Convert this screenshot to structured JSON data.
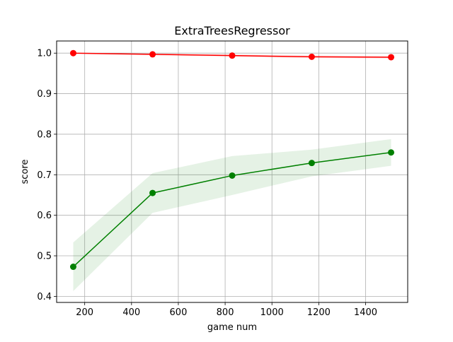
{
  "chart_data": {
    "type": "line",
    "title": "ExtraTreesRegressor",
    "xlabel": "game num",
    "ylabel": "score",
    "xlim": [
      80,
      1580
    ],
    "ylim": [
      0.385,
      1.03
    ],
    "xticks": [
      200,
      400,
      600,
      800,
      1000,
      1200,
      1400
    ],
    "xtick_labels": [
      "200",
      "400",
      "600",
      "800",
      "1000",
      "1200",
      "1400"
    ],
    "yticks": [
      0.4,
      0.5,
      0.6,
      0.7,
      0.8,
      0.9,
      1.0
    ],
    "ytick_labels": [
      "0.4",
      "0.5",
      "0.6",
      "0.7",
      "0.8",
      "0.9",
      "1.0"
    ],
    "grid": true,
    "x": [
      151,
      490,
      830,
      1170,
      1509
    ],
    "series": [
      {
        "values": [
          1.0,
          0.997,
          0.994,
          0.991,
          0.99
        ],
        "lower": [
          0.999,
          0.995,
          0.991,
          0.988,
          0.987
        ],
        "upper": [
          1.001,
          0.999,
          0.997,
          0.994,
          0.993
        ],
        "color": "#ff0000",
        "band_color": "#ff0000"
      },
      {
        "values": [
          0.473,
          0.655,
          0.698,
          0.729,
          0.755
        ],
        "lower": [
          0.413,
          0.606,
          0.65,
          0.696,
          0.722
        ],
        "upper": [
          0.533,
          0.704,
          0.746,
          0.762,
          0.788
        ],
        "color": "#008000",
        "band_color": "#008000"
      }
    ]
  }
}
